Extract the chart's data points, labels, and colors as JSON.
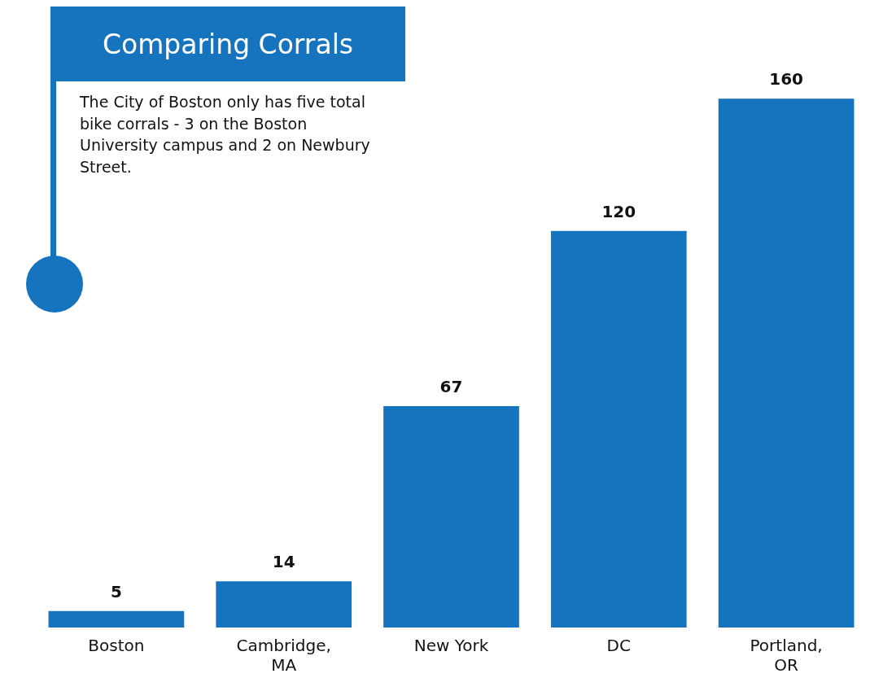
{
  "chart_data": {
    "type": "bar",
    "title": "Comparing Corrals",
    "annotations": [
      "The City of Boston only has five total bike corrals - 3 on the Boston University campus and 2 on Newbury Street."
    ],
    "categories": [
      "Boston",
      "Cambridge, MA",
      "New York",
      "DC",
      "Portland, OR"
    ],
    "values": [
      5,
      14,
      67,
      120,
      160
    ],
    "color": "#1673be",
    "data_labels": true,
    "grid": false,
    "legend": false
  }
}
